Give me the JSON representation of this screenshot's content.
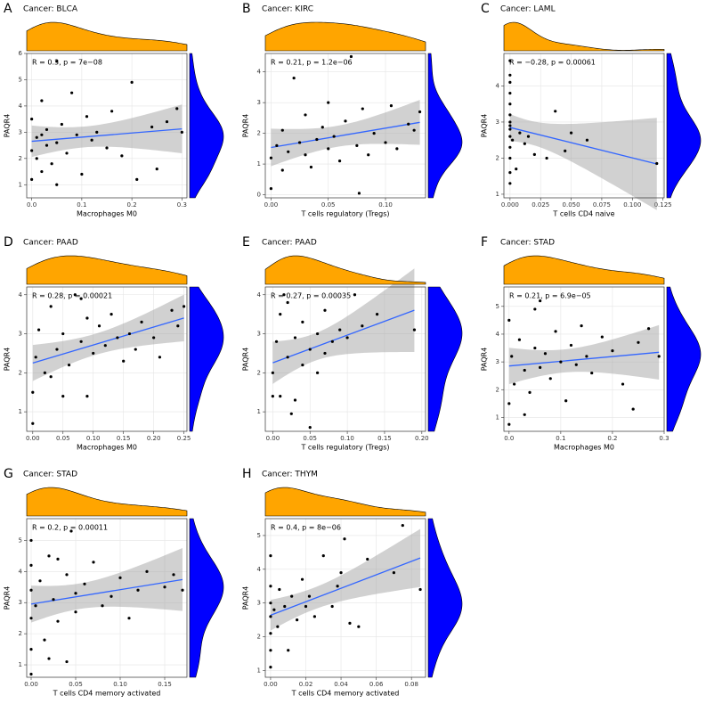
{
  "chart_data": [
    {
      "type": "scatter",
      "letter": "A",
      "title": "Cancer: BLCA",
      "annotation": "R = 0.3, p = 7e−08",
      "x_label": "Macrophages M0",
      "y_label": "PAQR4",
      "x": [
        0,
        0,
        0,
        0.01,
        0.01,
        0.02,
        0.02,
        0.03,
        0.03,
        0.04,
        0.05,
        0.05,
        0.06,
        0.07,
        0.08,
        0.09,
        0.1,
        0.11,
        0.12,
        0.13,
        0.15,
        0.16,
        0.18,
        0.2,
        0.21,
        0.24,
        0.25,
        0.27,
        0.29,
        0.3,
        0.05,
        0.02
      ],
      "values": [
        2.3,
        1.2,
        3.5,
        2.0,
        2.8,
        1.5,
        4.2,
        2.5,
        3.1,
        1.8,
        2.6,
        5.7,
        3.3,
        2.2,
        4.5,
        2.9,
        1.4,
        3.6,
        2.7,
        3.0,
        2.4,
        3.8,
        2.1,
        4.9,
        1.2,
        3.2,
        1.6,
        3.4,
        3.9,
        3.0,
        1.0,
        2.9
      ],
      "xlim": [
        -0.01,
        0.31
      ],
      "xticks": [
        {
          "value": 0,
          "label": "0.0"
        },
        0.1,
        0.2,
        0.3
      ],
      "ylim": [
        0.5,
        6
      ],
      "yticks": [
        1,
        2,
        3,
        4,
        5,
        6
      ],
      "grid": true,
      "point_color": "#000000",
      "top_color": "#FFA500",
      "right_color": "#0000FF",
      "line_color": "#3366FF"
    },
    {
      "type": "scatter",
      "letter": "B",
      "title": "Cancer: KIRC",
      "annotation": "R = 0.21, p = 1.2e−06",
      "x_label": "T cells regulatory (Tregs)",
      "y_label": "PAQR4",
      "x": [
        0,
        0,
        0.005,
        0.01,
        0.01,
        0.015,
        0.02,
        0.025,
        0.03,
        0.03,
        0.035,
        0.04,
        0.045,
        0.05,
        0.05,
        0.055,
        0.06,
        0.065,
        0.07,
        0.075,
        0.08,
        0.085,
        0.09,
        0.1,
        0.105,
        0.11,
        0.12,
        0.125,
        0.13,
        0.077
      ],
      "values": [
        1.2,
        0.2,
        1.6,
        2.1,
        0.8,
        1.4,
        3.8,
        1.7,
        1.3,
        2.6,
        0.9,
        1.8,
        2.2,
        1.5,
        3.0,
        1.9,
        1.1,
        2.4,
        4.5,
        1.6,
        2.8,
        1.3,
        2.0,
        1.7,
        2.9,
        1.5,
        2.3,
        2.1,
        2.7,
        0.05
      ],
      "xlim": [
        -0.005,
        0.135
      ],
      "xticks": [
        {
          "value": 0,
          "label": "0.00"
        },
        0.05,
        {
          "value": 0.1,
          "label": "0.10"
        }
      ],
      "ylim": [
        -0.1,
        4.6
      ],
      "yticks": [
        0,
        1,
        2,
        3,
        4
      ],
      "grid": true,
      "point_color": "#000000",
      "top_color": "#FFA500",
      "right_color": "#0000FF",
      "line_color": "#3366FF"
    },
    {
      "type": "scatter",
      "letter": "C",
      "title": "Cancer: LAML",
      "annotation": "R = −0.28, p = 0.00061",
      "x_label": "T cells CD4 naive",
      "y_label": "PAQR4",
      "x": [
        0,
        0,
        0,
        0,
        0,
        0,
        0,
        0,
        0,
        0,
        0,
        0,
        0,
        0,
        0.002,
        0.005,
        0.008,
        0.012,
        0.015,
        0.02,
        0.03,
        0.037,
        0.045,
        0.05,
        0.063,
        0.12
      ],
      "values": [
        1.3,
        1.6,
        2.0,
        2.3,
        2.6,
        2.8,
        3.0,
        3.2,
        3.5,
        3.8,
        4.1,
        4.3,
        4.7,
        2.9,
        2.5,
        1.7,
        2.7,
        2.4,
        2.6,
        2.1,
        2.0,
        3.3,
        2.2,
        2.7,
        2.5,
        1.85
      ],
      "xlim": [
        -0.005,
        0.126
      ],
      "xticks": [
        {
          "value": 0,
          "label": "0.000"
        },
        0.025,
        {
          "value": 0.05,
          "label": "0.050"
        },
        0.075,
        {
          "value": 0.1,
          "label": "0.100"
        },
        0.125
      ],
      "ylim": [
        0.9,
        4.9
      ],
      "yticks": [
        1,
        2,
        3,
        4
      ],
      "grid": true,
      "point_color": "#000000",
      "top_color": "#FFA500",
      "right_color": "#0000FF",
      "line_color": "#3366FF"
    },
    {
      "type": "scatter",
      "letter": "D",
      "title": "Cancer: PAAD",
      "annotation": "R = 0.28, p = 0.00021",
      "x_label": "Macrophages M0",
      "y_label": "PAQR4",
      "x": [
        0,
        0,
        0.005,
        0.01,
        0.02,
        0.03,
        0.04,
        0.05,
        0.05,
        0.06,
        0.07,
        0.08,
        0.09,
        0.09,
        0.1,
        0.11,
        0.12,
        0.13,
        0.14,
        0.15,
        0.16,
        0.17,
        0.18,
        0.2,
        0.21,
        0.23,
        0.24,
        0.25,
        0.08,
        0.03
      ],
      "values": [
        0.7,
        1.5,
        2.4,
        3.1,
        2.0,
        3.7,
        2.6,
        1.4,
        3.0,
        2.2,
        4.0,
        2.8,
        1.4,
        3.4,
        2.5,
        3.2,
        2.7,
        3.5,
        2.9,
        2.3,
        3.0,
        2.6,
        3.3,
        2.9,
        2.4,
        3.6,
        3.2,
        3.7,
        3.9,
        1.9
      ],
      "xlim": [
        -0.01,
        0.255
      ],
      "xticks": [
        {
          "value": 0,
          "label": "0.00"
        },
        0.05,
        {
          "value": 0.1,
          "label": "0.10"
        },
        0.15,
        {
          "value": 0.2,
          "label": "0.20"
        },
        0.25
      ],
      "ylim": [
        0.5,
        4.2
      ],
      "yticks": [
        1,
        2,
        3,
        4
      ],
      "grid": true,
      "point_color": "#000000",
      "top_color": "#FFA500",
      "right_color": "#0000FF",
      "line_color": "#3366FF"
    },
    {
      "type": "scatter",
      "letter": "E",
      "title": "Cancer: PAAD",
      "annotation": "R = 0.27, p = 0.00035",
      "x_label": "T cells regulatory (Tregs)",
      "y_label": "PAQR4",
      "x": [
        0,
        0,
        0.005,
        0.01,
        0.01,
        0.02,
        0.02,
        0.03,
        0.03,
        0.04,
        0.04,
        0.05,
        0.05,
        0.06,
        0.06,
        0.07,
        0.07,
        0.08,
        0.09,
        0.1,
        0.11,
        0.12,
        0.14,
        0.19,
        0.025,
        0.015
      ],
      "values": [
        2.0,
        1.4,
        2.8,
        3.5,
        1.4,
        2.4,
        3.8,
        1.3,
        2.9,
        2.2,
        3.3,
        2.6,
        0.6,
        3.0,
        2.0,
        3.6,
        2.5,
        2.8,
        3.1,
        2.9,
        4.0,
        3.2,
        3.5,
        3.1,
        0.95,
        4.0
      ],
      "xlim": [
        -0.01,
        0.205
      ],
      "xticks": [
        {
          "value": 0,
          "label": "0.00"
        },
        0.05,
        {
          "value": 0.1,
          "label": "0.10"
        },
        0.15,
        {
          "value": 0.2,
          "label": "0.20"
        }
      ],
      "ylim": [
        0.5,
        4.2
      ],
      "yticks": [
        1,
        2,
        3,
        4
      ],
      "grid": true,
      "point_color": "#000000",
      "top_color": "#FFA500",
      "right_color": "#0000FF",
      "line_color": "#3366FF"
    },
    {
      "type": "scatter",
      "letter": "F",
      "title": "Cancer: STAD",
      "annotation": "R = 0.21, p = 6.9e−05",
      "x_label": "Macrophages M0",
      "y_label": "PAQR4",
      "x": [
        0,
        0,
        0,
        0.005,
        0.01,
        0.02,
        0.03,
        0.04,
        0.05,
        0.05,
        0.06,
        0.07,
        0.08,
        0.09,
        0.1,
        0.11,
        0.12,
        0.13,
        0.14,
        0.15,
        0.16,
        0.18,
        0.2,
        0.22,
        0.24,
        0.25,
        0.27,
        0.29,
        0.06,
        0.03
      ],
      "values": [
        0.75,
        1.5,
        4.5,
        3.2,
        2.2,
        3.8,
        2.7,
        1.9,
        3.5,
        4.9,
        2.8,
        3.3,
        2.4,
        4.1,
        3.0,
        1.6,
        3.6,
        2.9,
        4.3,
        3.2,
        2.6,
        3.9,
        3.4,
        2.2,
        1.3,
        3.7,
        4.2,
        3.2,
        5.2,
        1.1
      ],
      "xlim": [
        -0.01,
        0.3
      ],
      "xticks": [
        {
          "value": 0,
          "label": "0.0"
        },
        0.1,
        0.2,
        0.3
      ],
      "ylim": [
        0.5,
        5.7
      ],
      "yticks": [
        1,
        2,
        3,
        4,
        5
      ],
      "grid": true,
      "point_color": "#000000",
      "top_color": "#FFA500",
      "right_color": "#0000FF",
      "line_color": "#3366FF"
    },
    {
      "type": "scatter",
      "letter": "G",
      "title": "Cancer: STAD",
      "annotation": "R = 0.2, p = 0.00011",
      "x_label": "T cells CD4 memory activated",
      "y_label": "PAQR4",
      "x": [
        0,
        0,
        0,
        0,
        0,
        0,
        0.005,
        0.01,
        0.015,
        0.02,
        0.025,
        0.03,
        0.04,
        0.04,
        0.05,
        0.05,
        0.06,
        0.07,
        0.08,
        0.09,
        0.1,
        0.11,
        0.12,
        0.13,
        0.15,
        0.16,
        0.17,
        0.045,
        0.02,
        0.03
      ],
      "values": [
        0.7,
        1.5,
        2.5,
        3.4,
        4.2,
        5.0,
        2.9,
        3.7,
        1.8,
        4.5,
        3.1,
        2.4,
        3.9,
        1.1,
        3.3,
        2.7,
        3.6,
        4.3,
        2.9,
        3.2,
        3.8,
        2.5,
        3.4,
        4.0,
        3.5,
        3.9,
        3.4,
        5.3,
        1.2,
        4.4
      ],
      "xlim": [
        -0.005,
        0.175
      ],
      "xticks": [
        {
          "value": 0,
          "label": "0.00"
        },
        0.05,
        {
          "value": 0.1,
          "label": "0.10"
        },
        0.15
      ],
      "ylim": [
        0.6,
        5.7
      ],
      "yticks": [
        1,
        2,
        3,
        4,
        5
      ],
      "grid": true,
      "point_color": "#000000",
      "top_color": "#FFA500",
      "right_color": "#0000FF",
      "line_color": "#3366FF"
    },
    {
      "type": "scatter",
      "letter": "H",
      "title": "Cancer: THYM",
      "annotation": "R = 0.4, p = 8e−06",
      "x_label": "T cells CD4 memory activated",
      "y_label": "PAQR4",
      "x": [
        0,
        0,
        0,
        0,
        0,
        0,
        0,
        0.002,
        0.004,
        0.005,
        0.008,
        0.01,
        0.012,
        0.015,
        0.018,
        0.02,
        0.022,
        0.025,
        0.03,
        0.035,
        0.038,
        0.04,
        0.042,
        0.045,
        0.05,
        0.055,
        0.07,
        0.075,
        0.085
      ],
      "values": [
        1.1,
        1.6,
        2.1,
        2.6,
        3.0,
        3.5,
        4.4,
        2.8,
        2.3,
        3.4,
        2.9,
        1.6,
        3.2,
        2.5,
        3.7,
        2.9,
        3.2,
        2.6,
        4.4,
        2.9,
        3.5,
        3.9,
        4.9,
        2.4,
        2.3,
        4.3,
        3.9,
        5.3,
        3.4
      ],
      "xlim": [
        -0.003,
        0.088
      ],
      "xticks": [
        {
          "value": 0,
          "label": "0.00"
        },
        0.02,
        0.04,
        0.06,
        0.08
      ],
      "ylim": [
        0.8,
        5.5
      ],
      "yticks": [
        1,
        2,
        3,
        4,
        5
      ],
      "grid": true,
      "point_color": "#000000",
      "top_color": "#FFA500",
      "right_color": "#0000FF",
      "line_color": "#3366FF"
    }
  ]
}
